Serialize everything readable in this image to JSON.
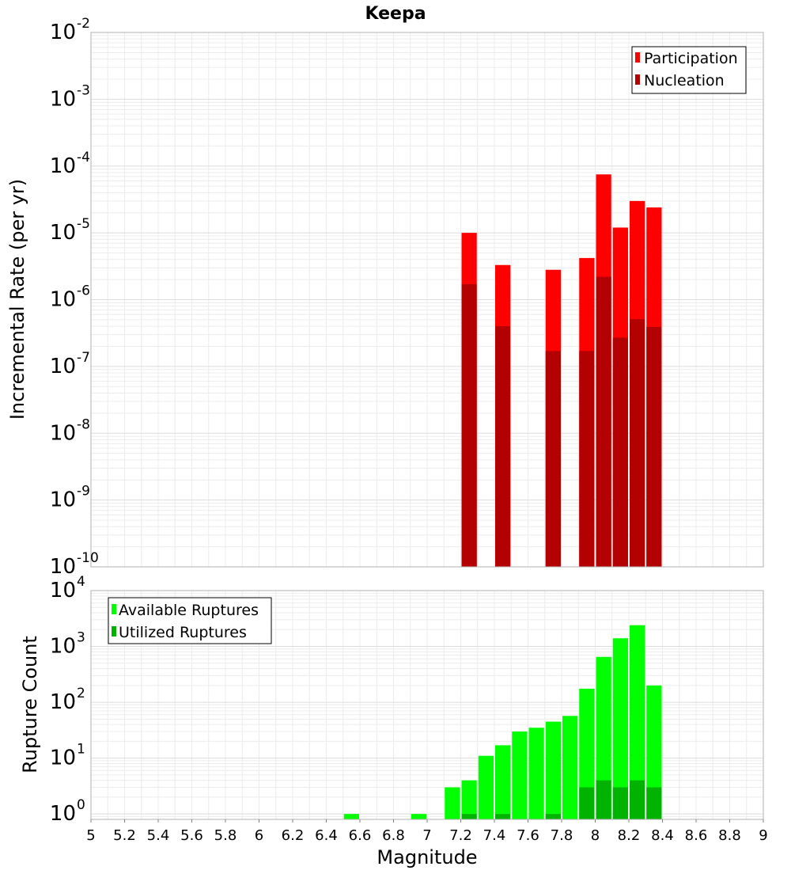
{
  "chart_data": [
    {
      "type": "bar",
      "title": "Keepa",
      "ylabel": "Incremental Rate (per yr)",
      "yscale": "log",
      "ylim": [
        1e-10,
        0.01
      ],
      "xlim": [
        5,
        9
      ],
      "ytick_bases": [
        "10",
        "10",
        "10",
        "10",
        "10",
        "10",
        "10",
        "10",
        "10"
      ],
      "ytick_exps": [
        "-10",
        "-9",
        "-8",
        "-7",
        "-6",
        "-5",
        "-4",
        "-3",
        "-2"
      ],
      "grid": true,
      "legend_position": "top-right",
      "colors": {
        "participation": "#ff0000",
        "nucleation": "#b30000"
      },
      "series": [
        {
          "name": "Participation",
          "x": [
            7.25,
            7.45,
            7.75,
            7.95,
            8.05,
            8.15,
            8.25,
            8.35
          ],
          "values": [
            1e-05,
            3.3e-06,
            2.8e-06,
            4.2e-06,
            7.5e-05,
            1.2e-05,
            3e-05,
            2.4e-05
          ]
        },
        {
          "name": "Nucleation",
          "x": [
            7.25,
            7.45,
            7.75,
            7.95,
            8.05,
            8.15,
            8.25,
            8.35
          ],
          "values": [
            1.7e-06,
            4e-07,
            1.7e-07,
            1.7e-07,
            2.2e-06,
            2.7e-07,
            5.1e-07,
            3.9e-07
          ]
        }
      ]
    },
    {
      "type": "bar",
      "ylabel": "Rupture Count",
      "xlabel": "Magnitude",
      "yscale": "log",
      "ylim": [
        0.8,
        10000
      ],
      "xlim": [
        5,
        9
      ],
      "xticks": [
        "5",
        "5.2",
        "5.4",
        "5.6",
        "5.8",
        "6",
        "6.2",
        "6.4",
        "6.6",
        "6.8",
        "7",
        "7.2",
        "7.4",
        "7.6",
        "7.8",
        "8",
        "8.2",
        "8.4",
        "8.6",
        "8.8",
        "9"
      ],
      "ytick_bases": [
        "10",
        "10",
        "10",
        "10",
        "10"
      ],
      "ytick_exps": [
        "0",
        "1",
        "2",
        "3",
        "4"
      ],
      "grid": true,
      "legend_position": "top-left",
      "colors": {
        "available": "#00ff00",
        "utilized": "#00b300"
      },
      "series": [
        {
          "name": "Available Ruptures",
          "x": [
            6.55,
            6.95,
            7.15,
            7.25,
            7.35,
            7.45,
            7.55,
            7.65,
            7.75,
            7.85,
            7.95,
            8.05,
            8.15,
            8.25,
            8.35
          ],
          "values": [
            1,
            1,
            3,
            4,
            11,
            17,
            30,
            35,
            45,
            57,
            175,
            650,
            1400,
            2400,
            200
          ]
        },
        {
          "name": "Utilized Ruptures",
          "x": [
            7.25,
            7.45,
            7.75,
            7.95,
            8.05,
            8.15,
            8.25,
            8.35
          ],
          "values": [
            1,
            1,
            1,
            3,
            4,
            3,
            4,
            3
          ]
        }
      ]
    }
  ]
}
